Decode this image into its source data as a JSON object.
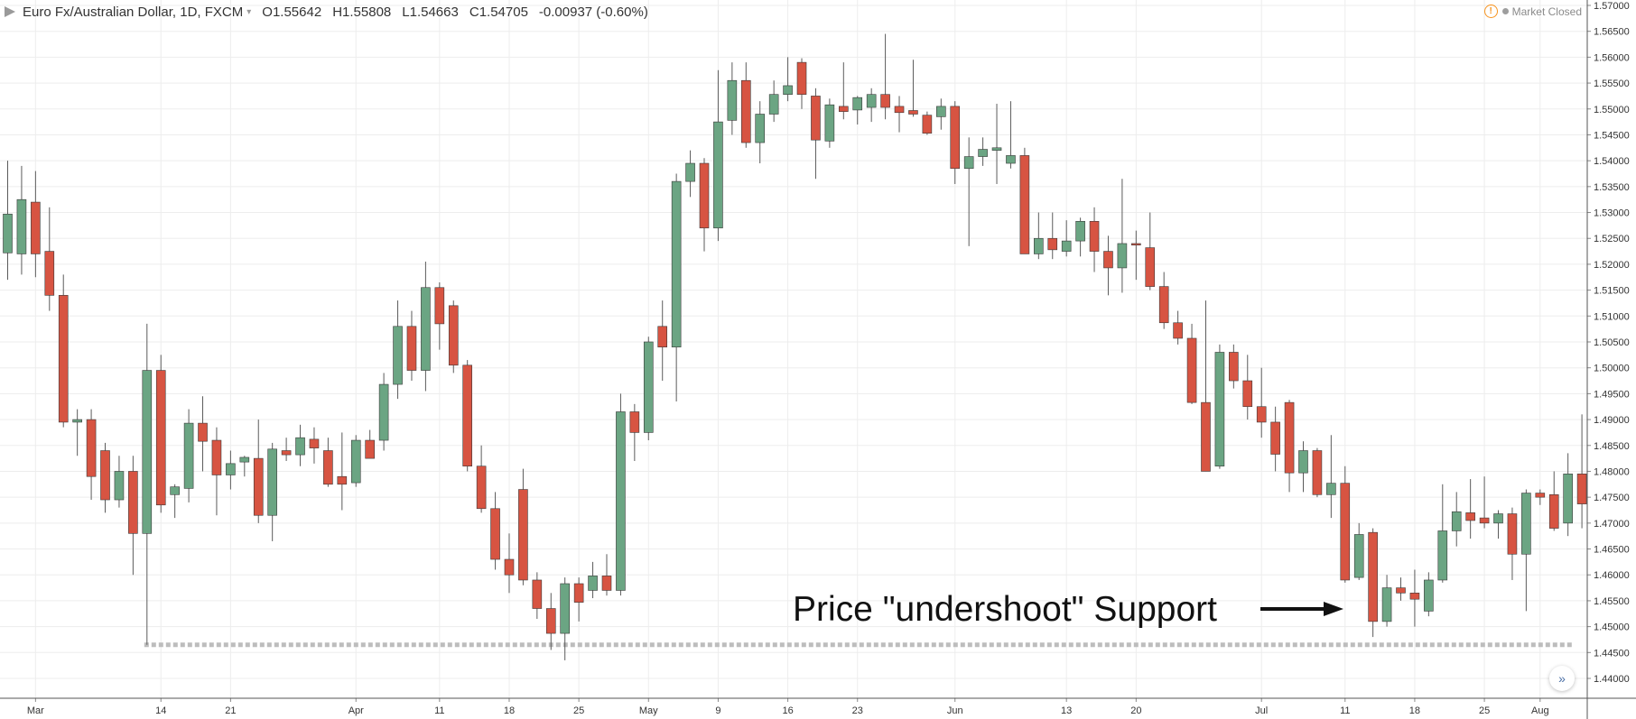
{
  "header": {
    "title": "Euro Fx/Australian Dollar, 1D, FXCM",
    "caret": "▾",
    "open_label": "O",
    "open": "1.55642",
    "high_label": "H",
    "high": "1.55808",
    "low_label": "L",
    "low": "1.54663",
    "close_label": "C",
    "close": "1.54705",
    "change": "-0.00937 (-0.60%)"
  },
  "status": {
    "text": "Market Closed",
    "icon": "warning-icon"
  },
  "goto_live_icon": "double-chevron-right-icon",
  "colors": {
    "up": "#6ba583",
    "down": "#d75442",
    "wick": "#5b5b5b",
    "grid": "#ededed",
    "support_line": "#bdbdbd",
    "axis_text": "#333333"
  },
  "chart_data": {
    "type": "candlestick",
    "title": "Euro Fx/Australian Dollar, 1D, FXCM",
    "ylim": [
      1.4366,
      1.57
    ],
    "y_ticks": [
      "1.57000",
      "1.56500",
      "1.56000",
      "1.55500",
      "1.55000",
      "1.54500",
      "1.54000",
      "1.53500",
      "1.53000",
      "1.52500",
      "1.52000",
      "1.51500",
      "1.51000",
      "1.50500",
      "1.50000",
      "1.49500",
      "1.49000",
      "1.48500",
      "1.48000",
      "1.47500",
      "1.47000",
      "1.46500",
      "1.46000",
      "1.45500",
      "1.45000",
      "1.44500",
      "1.44000"
    ],
    "x_labels": [
      {
        "label": "Mar",
        "bar": 2
      },
      {
        "label": "14",
        "bar": 11
      },
      {
        "label": "21",
        "bar": 16
      },
      {
        "label": "Apr",
        "bar": 25
      },
      {
        "label": "11",
        "bar": 31
      },
      {
        "label": "18",
        "bar": 36
      },
      {
        "label": "25",
        "bar": 41
      },
      {
        "label": "May",
        "bar": 46
      },
      {
        "label": "9",
        "bar": 51
      },
      {
        "label": "16",
        "bar": 56
      },
      {
        "label": "23",
        "bar": 61
      },
      {
        "label": "Jun",
        "bar": 68
      },
      {
        "label": "13",
        "bar": 76
      },
      {
        "label": "20",
        "bar": 81
      },
      {
        "label": "Jul",
        "bar": 90
      },
      {
        "label": "11",
        "bar": 96
      },
      {
        "label": "18",
        "bar": 101
      },
      {
        "label": "25",
        "bar": 106
      },
      {
        "label": "Aug",
        "bar": 110
      }
    ],
    "grid": true,
    "candles": [
      {
        "o": 1.5222,
        "h": 1.54,
        "l": 1.517,
        "c": 1.5297
      },
      {
        "o": 1.522,
        "h": 1.539,
        "l": 1.518,
        "c": 1.5325
      },
      {
        "o": 1.532,
        "h": 1.538,
        "l": 1.5175,
        "c": 1.522
      },
      {
        "o": 1.5225,
        "h": 1.531,
        "l": 1.511,
        "c": 1.514
      },
      {
        "o": 1.514,
        "h": 1.518,
        "l": 1.4885,
        "c": 1.4895
      },
      {
        "o": 1.4895,
        "h": 1.492,
        "l": 1.483,
        "c": 1.49
      },
      {
        "o": 1.49,
        "h": 1.492,
        "l": 1.4745,
        "c": 1.479
      },
      {
        "o": 1.484,
        "h": 1.4855,
        "l": 1.472,
        "c": 1.4745
      },
      {
        "o": 1.4745,
        "h": 1.483,
        "l": 1.473,
        "c": 1.48
      },
      {
        "o": 1.48,
        "h": 1.483,
        "l": 1.46,
        "c": 1.468
      },
      {
        "o": 1.468,
        "h": 1.5085,
        "l": 1.4465,
        "c": 1.4995
      },
      {
        "o": 1.4995,
        "h": 1.5025,
        "l": 1.472,
        "c": 1.4735
      },
      {
        "o": 1.4755,
        "h": 1.4775,
        "l": 1.471,
        "c": 1.477
      },
      {
        "o": 1.4767,
        "h": 1.492,
        "l": 1.474,
        "c": 1.4893
      },
      {
        "o": 1.4893,
        "h": 1.4945,
        "l": 1.48,
        "c": 1.4858
      },
      {
        "o": 1.486,
        "h": 1.4885,
        "l": 1.4715,
        "c": 1.4793
      },
      {
        "o": 1.4793,
        "h": 1.484,
        "l": 1.4765,
        "c": 1.4815
      },
      {
        "o": 1.4818,
        "h": 1.483,
        "l": 1.479,
        "c": 1.4827
      },
      {
        "o": 1.4825,
        "h": 1.49,
        "l": 1.47,
        "c": 1.4715
      },
      {
        "o": 1.4715,
        "h": 1.4855,
        "l": 1.4665,
        "c": 1.4843
      },
      {
        "o": 1.484,
        "h": 1.4865,
        "l": 1.482,
        "c": 1.4832
      },
      {
        "o": 1.4832,
        "h": 1.489,
        "l": 1.481,
        "c": 1.4865
      },
      {
        "o": 1.4862,
        "h": 1.4885,
        "l": 1.4815,
        "c": 1.4845
      },
      {
        "o": 1.484,
        "h": 1.4865,
        "l": 1.477,
        "c": 1.4775
      },
      {
        "o": 1.479,
        "h": 1.4875,
        "l": 1.4725,
        "c": 1.4775
      },
      {
        "o": 1.4778,
        "h": 1.487,
        "l": 1.477,
        "c": 1.486
      },
      {
        "o": 1.486,
        "h": 1.488,
        "l": 1.483,
        "c": 1.4825
      },
      {
        "o": 1.486,
        "h": 1.499,
        "l": 1.484,
        "c": 1.4968
      },
      {
        "o": 1.4968,
        "h": 1.513,
        "l": 1.494,
        "c": 1.508
      },
      {
        "o": 1.508,
        "h": 1.511,
        "l": 1.4975,
        "c": 1.4995
      },
      {
        "o": 1.4995,
        "h": 1.5205,
        "l": 1.4955,
        "c": 1.5155
      },
      {
        "o": 1.5155,
        "h": 1.5165,
        "l": 1.5035,
        "c": 1.5085
      },
      {
        "o": 1.512,
        "h": 1.513,
        "l": 1.499,
        "c": 1.5005
      },
      {
        "o": 1.5005,
        "h": 1.5015,
        "l": 1.48,
        "c": 1.481
      },
      {
        "o": 1.481,
        "h": 1.485,
        "l": 1.472,
        "c": 1.4728
      },
      {
        "o": 1.4728,
        "h": 1.476,
        "l": 1.461,
        "c": 1.463
      },
      {
        "o": 1.463,
        "h": 1.468,
        "l": 1.4565,
        "c": 1.46
      },
      {
        "o": 1.4765,
        "h": 1.4805,
        "l": 1.458,
        "c": 1.459
      },
      {
        "o": 1.459,
        "h": 1.4605,
        "l": 1.4515,
        "c": 1.4535
      },
      {
        "o": 1.4535,
        "h": 1.4565,
        "l": 1.4455,
        "c": 1.4487
      },
      {
        "o": 1.4487,
        "h": 1.4595,
        "l": 1.4435,
        "c": 1.4583
      },
      {
        "o": 1.4583,
        "h": 1.4595,
        "l": 1.451,
        "c": 1.4547
      },
      {
        "o": 1.457,
        "h": 1.4625,
        "l": 1.4555,
        "c": 1.4598
      },
      {
        "o": 1.4598,
        "h": 1.464,
        "l": 1.456,
        "c": 1.457
      },
      {
        "o": 1.457,
        "h": 1.495,
        "l": 1.456,
        "c": 1.4915
      },
      {
        "o": 1.4915,
        "h": 1.493,
        "l": 1.482,
        "c": 1.4875
      },
      {
        "o": 1.4875,
        "h": 1.506,
        "l": 1.486,
        "c": 1.505
      },
      {
        "o": 1.508,
        "h": 1.513,
        "l": 1.4975,
        "c": 1.504
      },
      {
        "o": 1.504,
        "h": 1.5375,
        "l": 1.4935,
        "c": 1.536
      },
      {
        "o": 1.536,
        "h": 1.542,
        "l": 1.533,
        "c": 1.5395
      },
      {
        "o": 1.5395,
        "h": 1.5405,
        "l": 1.5225,
        "c": 1.527
      },
      {
        "o": 1.527,
        "h": 1.5575,
        "l": 1.5245,
        "c": 1.5475
      },
      {
        "o": 1.5478,
        "h": 1.559,
        "l": 1.545,
        "c": 1.5555
      },
      {
        "o": 1.5555,
        "h": 1.559,
        "l": 1.5425,
        "c": 1.5435
      },
      {
        "o": 1.5435,
        "h": 1.5515,
        "l": 1.5395,
        "c": 1.549
      },
      {
        "o": 1.549,
        "h": 1.5555,
        "l": 1.5475,
        "c": 1.5528
      },
      {
        "o": 1.5528,
        "h": 1.56,
        "l": 1.5515,
        "c": 1.5545
      },
      {
        "o": 1.559,
        "h": 1.5598,
        "l": 1.55,
        "c": 1.5528
      },
      {
        "o": 1.5525,
        "h": 1.554,
        "l": 1.5365,
        "c": 1.544
      },
      {
        "o": 1.5438,
        "h": 1.552,
        "l": 1.5425,
        "c": 1.5508
      },
      {
        "o": 1.5505,
        "h": 1.559,
        "l": 1.548,
        "c": 1.5495
      },
      {
        "o": 1.5498,
        "h": 1.5525,
        "l": 1.547,
        "c": 1.5522
      },
      {
        "o": 1.5503,
        "h": 1.554,
        "l": 1.5475,
        "c": 1.5528
      },
      {
        "o": 1.5528,
        "h": 1.5645,
        "l": 1.548,
        "c": 1.5503
      },
      {
        "o": 1.5505,
        "h": 1.5525,
        "l": 1.5455,
        "c": 1.5493
      },
      {
        "o": 1.5497,
        "h": 1.5595,
        "l": 1.5485,
        "c": 1.549
      },
      {
        "o": 1.5488,
        "h": 1.5495,
        "l": 1.545,
        "c": 1.5453
      },
      {
        "o": 1.5485,
        "h": 1.552,
        "l": 1.546,
        "c": 1.5505
      },
      {
        "o": 1.5505,
        "h": 1.5515,
        "l": 1.5355,
        "c": 1.5385
      },
      {
        "o": 1.5385,
        "h": 1.5445,
        "l": 1.5235,
        "c": 1.5408
      },
      {
        "o": 1.5408,
        "h": 1.5445,
        "l": 1.539,
        "c": 1.5422
      },
      {
        "o": 1.542,
        "h": 1.551,
        "l": 1.5355,
        "c": 1.5425
      },
      {
        "o": 1.5395,
        "h": 1.5515,
        "l": 1.5385,
        "c": 1.541
      },
      {
        "o": 1.541,
        "h": 1.5425,
        "l": 1.522,
        "c": 1.522
      },
      {
        "o": 1.522,
        "h": 1.53,
        "l": 1.521,
        "c": 1.525
      },
      {
        "o": 1.525,
        "h": 1.53,
        "l": 1.521,
        "c": 1.5228
      },
      {
        "o": 1.5225,
        "h": 1.5285,
        "l": 1.5215,
        "c": 1.5245
      },
      {
        "o": 1.5245,
        "h": 1.529,
        "l": 1.5215,
        "c": 1.5283
      },
      {
        "o": 1.5283,
        "h": 1.531,
        "l": 1.5185,
        "c": 1.5225
      },
      {
        "o": 1.5225,
        "h": 1.5255,
        "l": 1.514,
        "c": 1.5193
      },
      {
        "o": 1.5193,
        "h": 1.5365,
        "l": 1.5145,
        "c": 1.524
      },
      {
        "o": 1.524,
        "h": 1.5265,
        "l": 1.517,
        "c": 1.5237
      },
      {
        "o": 1.5232,
        "h": 1.53,
        "l": 1.515,
        "c": 1.5157
      },
      {
        "o": 1.5157,
        "h": 1.5185,
        "l": 1.5075,
        "c": 1.5087
      },
      {
        "o": 1.5087,
        "h": 1.511,
        "l": 1.5045,
        "c": 1.5057
      },
      {
        "o": 1.5057,
        "h": 1.5085,
        "l": 1.493,
        "c": 1.4933
      },
      {
        "o": 1.4933,
        "h": 1.513,
        "l": 1.48,
        "c": 1.48
      },
      {
        "o": 1.481,
        "h": 1.5045,
        "l": 1.4805,
        "c": 1.503
      },
      {
        "o": 1.503,
        "h": 1.5045,
        "l": 1.496,
        "c": 1.4975
      },
      {
        "o": 1.4975,
        "h": 1.5025,
        "l": 1.49,
        "c": 1.4925
      },
      {
        "o": 1.4925,
        "h": 1.5,
        "l": 1.4865,
        "c": 1.4895
      },
      {
        "o": 1.4895,
        "h": 1.4925,
        "l": 1.48,
        "c": 1.4833
      },
      {
        "o": 1.4933,
        "h": 1.4938,
        "l": 1.476,
        "c": 1.4797
      },
      {
        "o": 1.4797,
        "h": 1.4858,
        "l": 1.476,
        "c": 1.484
      },
      {
        "o": 1.484,
        "h": 1.4845,
        "l": 1.475,
        "c": 1.4755
      },
      {
        "o": 1.4755,
        "h": 1.487,
        "l": 1.471,
        "c": 1.4777
      },
      {
        "o": 1.4777,
        "h": 1.481,
        "l": 1.4585,
        "c": 1.459
      },
      {
        "o": 1.4595,
        "h": 1.47,
        "l": 1.459,
        "c": 1.4678
      },
      {
        "o": 1.4682,
        "h": 1.469,
        "l": 1.448,
        "c": 1.451
      },
      {
        "o": 1.451,
        "h": 1.46,
        "l": 1.45,
        "c": 1.4575
      },
      {
        "o": 1.4575,
        "h": 1.4595,
        "l": 1.455,
        "c": 1.4565
      },
      {
        "o": 1.4565,
        "h": 1.461,
        "l": 1.45,
        "c": 1.4553
      },
      {
        "o": 1.453,
        "h": 1.4605,
        "l": 1.452,
        "c": 1.459
      },
      {
        "o": 1.459,
        "h": 1.4775,
        "l": 1.4585,
        "c": 1.4685
      },
      {
        "o": 1.4685,
        "h": 1.476,
        "l": 1.4655,
        "c": 1.4722
      },
      {
        "o": 1.472,
        "h": 1.4785,
        "l": 1.467,
        "c": 1.4705
      },
      {
        "o": 1.471,
        "h": 1.479,
        "l": 1.469,
        "c": 1.47
      },
      {
        "o": 1.47,
        "h": 1.4725,
        "l": 1.467,
        "c": 1.4718
      },
      {
        "o": 1.4718,
        "h": 1.473,
        "l": 1.459,
        "c": 1.464
      },
      {
        "o": 1.464,
        "h": 1.4765,
        "l": 1.453,
        "c": 1.4758
      },
      {
        "o": 1.4758,
        "h": 1.4765,
        "l": 1.4735,
        "c": 1.475
      },
      {
        "o": 1.4755,
        "h": 1.48,
        "l": 1.4685,
        "c": 1.469
      },
      {
        "o": 1.47,
        "h": 1.4835,
        "l": 1.4675,
        "c": 1.4795
      },
      {
        "o": 1.4795,
        "h": 1.491,
        "l": 1.469,
        "c": 1.4737
      }
    ],
    "support_level": 1.4465,
    "annotations": [
      {
        "text": "Price \"undershoot\" Support",
        "arrow": "right"
      }
    ]
  }
}
